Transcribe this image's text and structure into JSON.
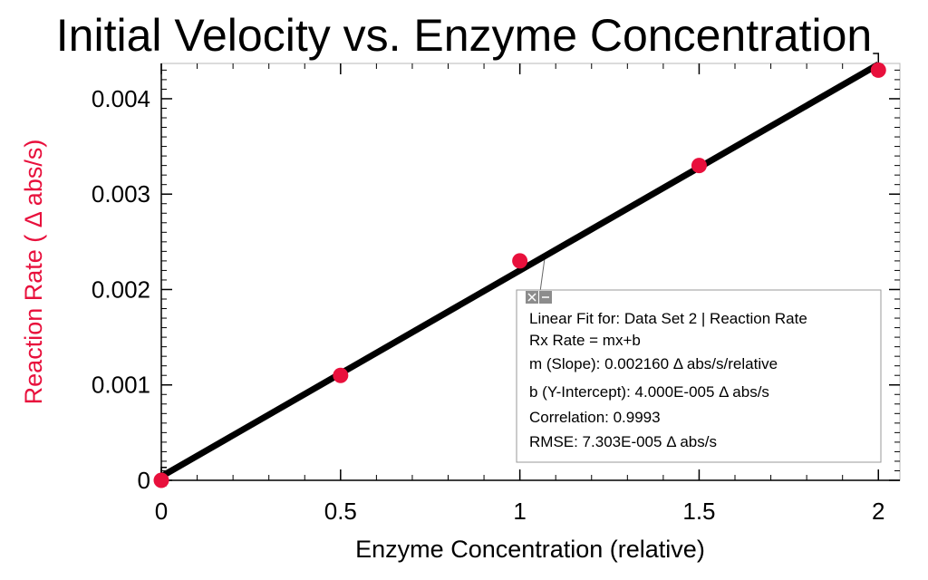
{
  "chart_data": {
    "type": "scatter",
    "title": "Initial Velocity vs. Enzyme Concentration",
    "xlabel": "Enzyme Concentration (relative)",
    "ylabel": "Reaction Rate ( Δ abs/s)",
    "xlim": [
      0,
      2.06
    ],
    "ylim": [
      0,
      0.00437
    ],
    "xticks": [
      0,
      0.5,
      1,
      1.5,
      2
    ],
    "xtick_labels": [
      "0",
      "0.5",
      "1",
      "1.5",
      "2"
    ],
    "yticks": [
      0,
      0.001,
      0.002,
      0.003,
      0.004
    ],
    "ytick_labels": [
      "0",
      "0.001",
      "0.002",
      "0.003",
      "0.004"
    ],
    "grid": false,
    "series": [
      {
        "x": [
          0,
          0.5,
          1,
          1.5,
          2
        ],
        "y": [
          0,
          0.0011,
          0.0023,
          0.0033,
          0.0043
        ],
        "color": "#e8103c"
      }
    ],
    "fit": {
      "slope": 0.00216,
      "intercept": 4e-05,
      "color": "#000000",
      "lines": [
        "Linear Fit for: Data Set 2 | Reaction Rate",
        "Rx Rate  = mx+b",
        "m (Slope): 0.002160  Δ abs/s/relative",
        "b (Y-Intercept): 4.000E-005  Δ abs/s",
        "Correlation: 0.9993",
        "RMSE: 7.303E-005  Δ abs/s"
      ]
    },
    "ylabel_color": "#e8103c"
  }
}
